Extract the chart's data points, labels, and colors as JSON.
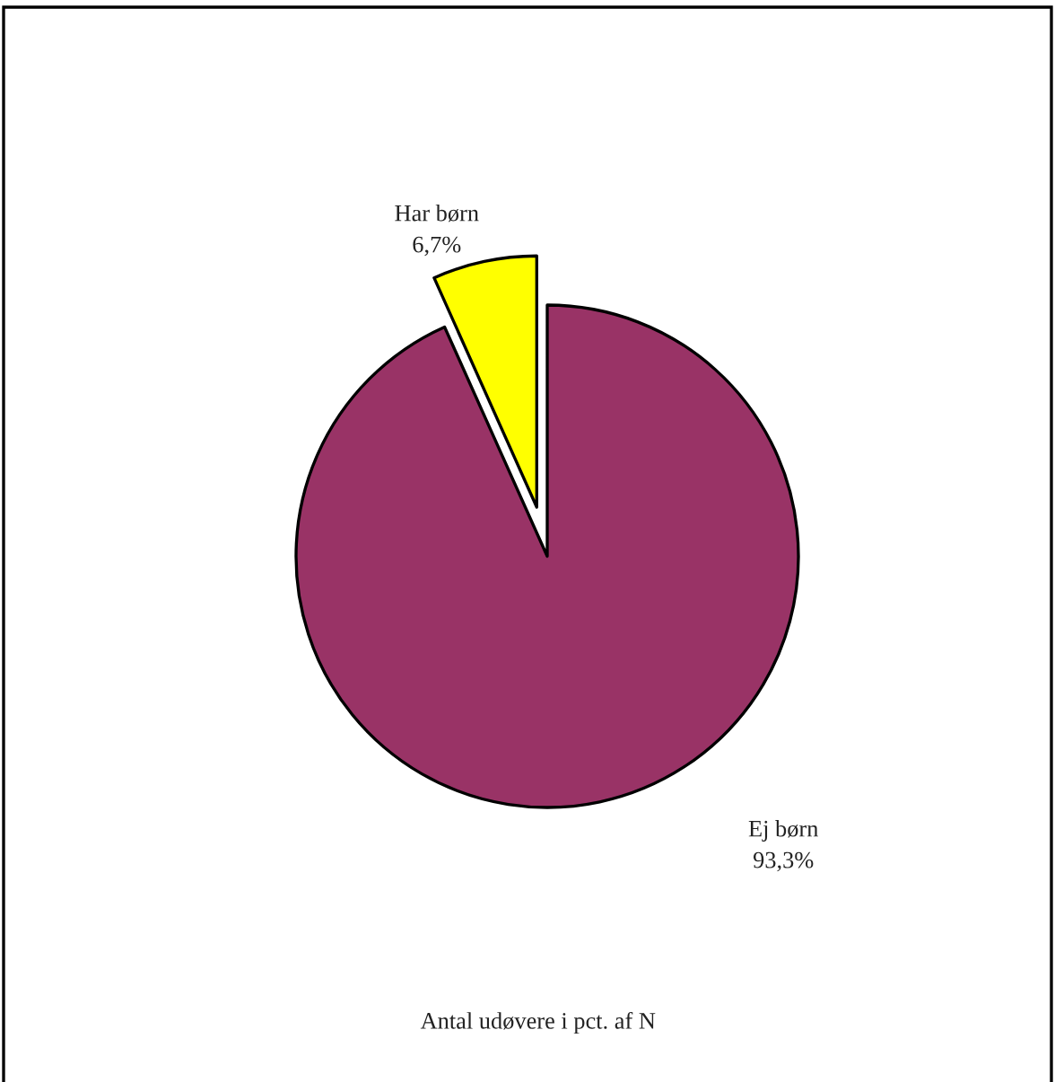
{
  "chart_data": {
    "type": "pie",
    "categories": [
      "Har børn",
      "Ej børn"
    ],
    "values": [
      6.7,
      93.3
    ],
    "value_labels": [
      "6,7%",
      "93,3%"
    ],
    "colors": [
      "#ffff00",
      "#993366"
    ],
    "annotations": [
      "Antal udøvere i pct. af N"
    ]
  }
}
